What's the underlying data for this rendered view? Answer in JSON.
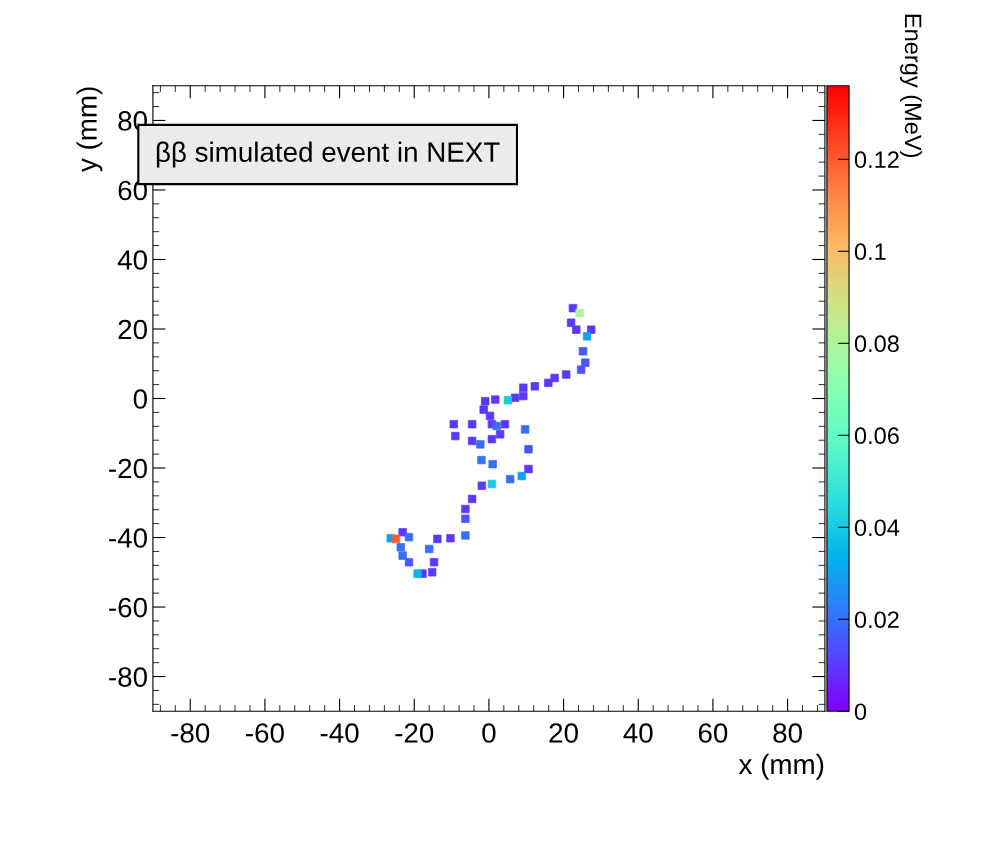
{
  "chart_data": {
    "type": "scatter",
    "xlabel": "x (mm)",
    "ylabel": "y (mm)",
    "clabel": "Energy (MeV)",
    "annotations": [
      "ββ simulated event in NEXT"
    ],
    "marker": "square",
    "grid": false,
    "legend": false,
    "xlim": [
      -90,
      90
    ],
    "ylim": [
      -90,
      90
    ],
    "xticks": [
      -80,
      -60,
      -40,
      -20,
      0,
      20,
      40,
      60,
      80
    ],
    "yticks": [
      -80,
      -60,
      -40,
      -20,
      0,
      20,
      40,
      60,
      80
    ],
    "clim": [
      0,
      0.136
    ],
    "cticks": [
      0,
      0.02,
      0.04,
      0.06,
      0.08,
      0.1,
      0.12
    ],
    "x": [
      22.5,
      22,
      23.4,
      27.4,
      26.3,
      25.2,
      25.8,
      24.7,
      20.7,
      17.6,
      15.9,
      12.3,
      9.2,
      9.2,
      7.0,
      5.1,
      1.7,
      -1,
      -1.4,
      0.3,
      0.8,
      -4.5,
      -9.4,
      -9,
      -4.5,
      -2.3,
      0.8,
      3,
      2.1,
      4.3,
      9.7,
      10.6,
      10.6,
      8.8,
      5.7,
      0.8,
      -1.9,
      -4.5,
      -6.3,
      -6.3,
      -6.3,
      -10.3,
      -13.8,
      -16,
      -14.7,
      -15.2,
      -17.8,
      -19.1,
      -21.4,
      -23.1,
      -23.6,
      -23.1,
      -21.4,
      -26.3,
      -2,
      1,
      24.3,
      -24.9
    ],
    "values": [
      26,
      21.8,
      19.8,
      19.8,
      17.9,
      13.6,
      10.3,
      8.3,
      6.9,
      5.9,
      4.5,
      3.5,
      3.1,
      0.7,
      0.2,
      -0.5,
      -0.3,
      -0.8,
      -3.2,
      -5,
      -7.4,
      -7.4,
      -7.4,
      -10.8,
      -12.2,
      -13.2,
      -11.7,
      -10.3,
      -7.9,
      -7.4,
      -8.9,
      -14.6,
      -20.3,
      -22.3,
      -23.2,
      -24.6,
      -25.1,
      -28.9,
      -31.8,
      -34.6,
      -39.4,
      -40.2,
      -40.4,
      -43.3,
      -47.1,
      -50,
      -50.4,
      -50.4,
      -47.1,
      -45.2,
      -42.8,
      -38.5,
      -39.9,
      -40.2,
      -17.7,
      -18.9,
      24.6,
      -40.4
    ],
    "cvalues": [
      0.01,
      0.01,
      0.01,
      0.01,
      0.03,
      0.015,
      0.015,
      0.015,
      0.01,
      0.01,
      0.01,
      0.01,
      0.01,
      0.01,
      0.01,
      0.04,
      0.01,
      0.01,
      0.01,
      0.01,
      0.01,
      0.01,
      0.01,
      0.01,
      0.01,
      0.02,
      0.01,
      0.01,
      0.02,
      0.01,
      0.02,
      0.015,
      0.01,
      0.03,
      0.02,
      0.04,
      0.01,
      0.01,
      0.01,
      0.015,
      0.02,
      0.01,
      0.01,
      0.02,
      0.01,
      0.01,
      0.01,
      0.035,
      0.015,
      0.02,
      0.02,
      0.01,
      0.02,
      0.03,
      0.02,
      0.02,
      0.08,
      0.12
    ]
  }
}
